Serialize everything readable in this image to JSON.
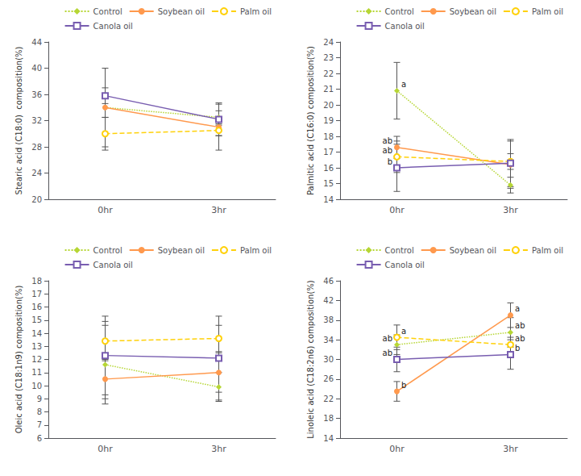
{
  "chart_data": [
    {
      "type": "line",
      "ylabel": "Stearic acid (C18:0)  composition(%)",
      "categories": [
        "0hr",
        "3hr"
      ],
      "ylim": [
        20,
        44
      ],
      "yticks": [
        20,
        24,
        28,
        32,
        36,
        40,
        44
      ],
      "grid": false,
      "legend": "upper right",
      "series": [
        {
          "name": "Control",
          "values": [
            34.0,
            32.5
          ],
          "yerr": [
            1.5,
            1.0
          ],
          "marker": "diamond",
          "line_style": "dotted"
        },
        {
          "name": "Soybean oil",
          "values": [
            34.0,
            31.0
          ],
          "yerr": [
            6.0,
            3.5
          ],
          "marker": "circle",
          "line_style": "solid"
        },
        {
          "name": "Palm oil",
          "values": [
            30.0,
            30.5
          ],
          "yerr": [
            2.5,
            0.8
          ],
          "marker": "open_circle",
          "line_style": "dashed"
        },
        {
          "name": "Canola oil",
          "values": [
            35.8,
            32.2
          ],
          "yerr": [
            1.2,
            2.5
          ],
          "marker": "open_square",
          "line_style": "solid"
        }
      ],
      "annotations": []
    },
    {
      "type": "line",
      "ylabel": "Palmitic acid (C16:0) composition(%)",
      "categories": [
        "0hr",
        "3hr"
      ],
      "ylim": [
        14,
        24
      ],
      "yticks": [
        14,
        15,
        16,
        17,
        18,
        19,
        20,
        21,
        22,
        23,
        24
      ],
      "grid": false,
      "legend": "upper right",
      "series": [
        {
          "name": "Control",
          "values": [
            20.9,
            14.9
          ],
          "yerr": [
            1.8,
            0.5
          ],
          "marker": "diamond",
          "line_style": "dotted"
        },
        {
          "name": "Soybean oil",
          "values": [
            17.3,
            16.2
          ],
          "yerr": [
            0.7,
            1.5
          ],
          "marker": "circle",
          "line_style": "solid"
        },
        {
          "name": "Palm oil",
          "values": [
            16.7,
            16.4
          ],
          "yerr": [
            1.0,
            0.5
          ],
          "marker": "open_circle",
          "line_style": "dashed"
        },
        {
          "name": "Canola oil",
          "values": [
            16.0,
            16.3
          ],
          "yerr": [
            1.5,
            1.5
          ],
          "marker": "open_square",
          "line_style": "solid"
        }
      ],
      "annotations": [
        {
          "series": "Control",
          "x": "0hr",
          "text": "a"
        },
        {
          "series": "Soybean oil",
          "x": "0hr",
          "text": "ab"
        },
        {
          "series": "Palm oil",
          "x": "0hr",
          "text": "ab"
        },
        {
          "series": "Canola oil",
          "x": "0hr",
          "text": "b"
        }
      ]
    },
    {
      "type": "line",
      "ylabel": "Oleic acid (C18:1n9) composition(%)",
      "categories": [
        "0hr",
        "3hr"
      ],
      "ylim": [
        6,
        18
      ],
      "yticks": [
        6,
        7,
        8,
        9,
        10,
        11,
        12,
        13,
        14,
        15,
        16,
        17,
        18
      ],
      "grid": false,
      "legend": "upper right",
      "series": [
        {
          "name": "Control",
          "values": [
            11.6,
            9.9
          ],
          "yerr": [
            3.0,
            1.1
          ],
          "marker": "diamond",
          "line_style": "dotted"
        },
        {
          "name": "Soybean oil",
          "values": [
            10.5,
            11.0
          ],
          "yerr": [
            1.5,
            1.5
          ],
          "marker": "circle",
          "line_style": "solid"
        },
        {
          "name": "Palm oil",
          "values": [
            13.4,
            13.6
          ],
          "yerr": [
            1.5,
            1.0
          ],
          "marker": "open_circle",
          "line_style": "dashed"
        },
        {
          "name": "Canola oil",
          "values": [
            12.3,
            12.1
          ],
          "yerr": [
            3.0,
            3.2
          ],
          "marker": "open_square",
          "line_style": "solid"
        }
      ],
      "annotations": []
    },
    {
      "type": "line",
      "ylabel": "Linoleic acid (C18:2n6) composition(%)",
      "categories": [
        "0hr",
        "3hr"
      ],
      "ylim": [
        14,
        46
      ],
      "yticks": [
        14,
        18,
        22,
        26,
        30,
        34,
        38,
        42,
        46
      ],
      "grid": false,
      "legend": "upper right",
      "series": [
        {
          "name": "Control",
          "values": [
            33.0,
            35.5
          ],
          "yerr": [
            2.0,
            3.0
          ],
          "marker": "diamond",
          "line_style": "dotted"
        },
        {
          "name": "Soybean oil",
          "values": [
            23.5,
            39.0
          ],
          "yerr": [
            2.0,
            2.5
          ],
          "marker": "circle",
          "line_style": "solid"
        },
        {
          "name": "Palm oil",
          "values": [
            34.5,
            33.0
          ],
          "yerr": [
            2.5,
            1.5
          ],
          "marker": "open_circle",
          "line_style": "dashed"
        },
        {
          "name": "Canola oil",
          "values": [
            30.0,
            31.0
          ],
          "yerr": [
            2.5,
            3.0
          ],
          "marker": "open_square",
          "line_style": "solid"
        }
      ],
      "annotations": [
        {
          "series": "Control",
          "x": "0hr",
          "text": "ab"
        },
        {
          "series": "Soybean oil",
          "x": "0hr",
          "text": "b"
        },
        {
          "series": "Palm oil",
          "x": "0hr",
          "text": "a"
        },
        {
          "series": "Canola oil",
          "x": "0hr",
          "text": "ab"
        },
        {
          "series": "Control",
          "x": "3hr",
          "text": "ab"
        },
        {
          "series": "Soybean oil",
          "x": "3hr",
          "text": "a"
        },
        {
          "series": "Palm oil",
          "x": "3hr",
          "text": "ab"
        },
        {
          "series": "Canola oil",
          "x": "3hr",
          "text": "b"
        }
      ]
    }
  ]
}
